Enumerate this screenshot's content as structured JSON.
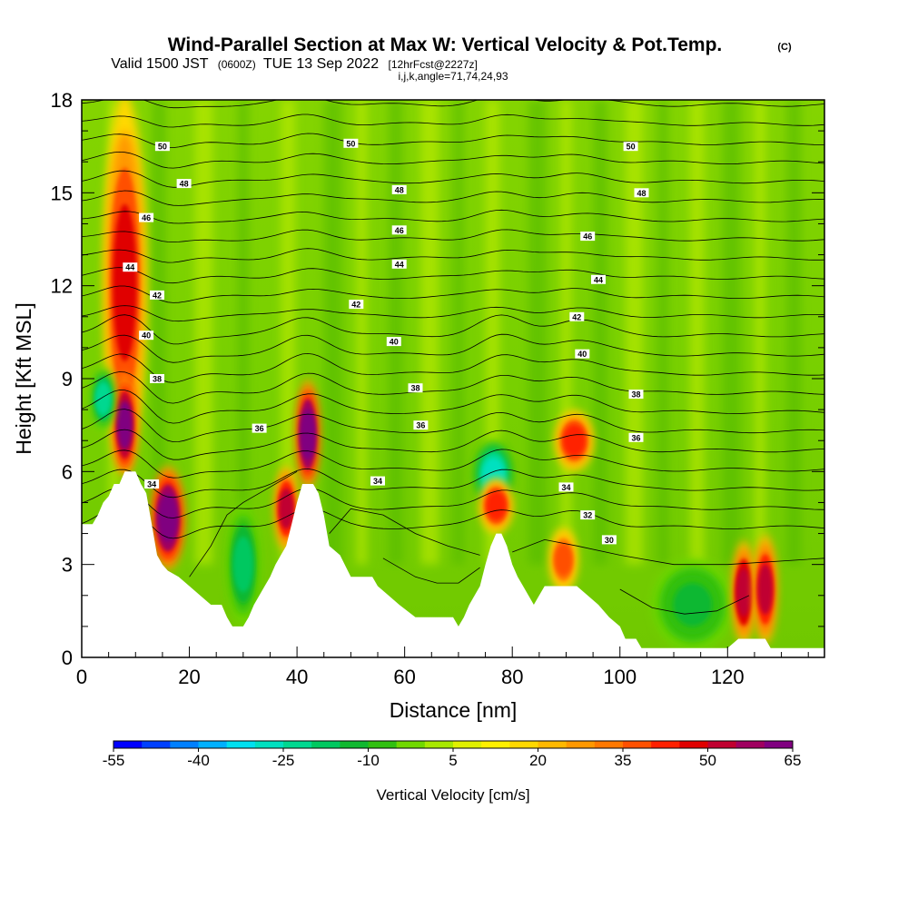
{
  "chart_data": {
    "type": "heatmap",
    "title": {
      "main": "Wind-Parallel Section at Max W: Vertical Velocity & Pot.Temp.",
      "copyright": "(C)",
      "line2_a": "Valid 1500 JST",
      "line2_b": "(0600Z)",
      "line2_c": "TUE 13 Sep 2022",
      "line2_d": "[12hrFcst@2227z]",
      "line3": "i,j,k,angle=71,74,24,93"
    },
    "xlabel": "Distance [nm]",
    "ylabel": "Height [Kft MSL]",
    "xlim": [
      0,
      138
    ],
    "ylim": [
      0,
      18
    ],
    "x_ticks": [
      0,
      20,
      40,
      60,
      80,
      100,
      120
    ],
    "y_ticks": [
      0,
      3,
      6,
      9,
      12,
      15,
      18
    ],
    "colorbar": {
      "label": "Vertical Velocity [cm/s]",
      "tick_labels": [
        "-55",
        "-40",
        "-25",
        "-10",
        "5",
        "20",
        "35",
        "50",
        "65"
      ],
      "colors": [
        "#0000ff",
        "#0040ff",
        "#0080ff",
        "#00b0ff",
        "#00e0f0",
        "#00e0c0",
        "#00d890",
        "#00c860",
        "#10b830",
        "#30c010",
        "#70d800",
        "#a8e800",
        "#e0f000",
        "#fff000",
        "#ffd800",
        "#ffb800",
        "#ff9800",
        "#ff7800",
        "#ff5000",
        "#ff2000",
        "#e00000",
        "#c00030",
        "#a00060",
        "#800080"
      ]
    },
    "theta_contour_labels": {
      "50": [
        [
          15,
          16.5
        ],
        [
          50,
          16.6
        ],
        [
          102,
          16.5
        ]
      ],
      "48": [
        [
          19,
          15.3
        ],
        [
          59,
          15.1
        ],
        [
          104,
          15.0
        ]
      ],
      "46": [
        [
          12,
          14.2
        ],
        [
          59,
          13.8
        ],
        [
          94,
          13.6
        ]
      ],
      "44": [
        [
          9,
          12.6
        ],
        [
          59,
          12.7
        ],
        [
          96,
          12.2
        ]
      ],
      "42": [
        [
          14,
          11.7
        ],
        [
          51,
          11.4
        ],
        [
          92,
          11.0
        ]
      ],
      "40": [
        [
          12,
          10.4
        ],
        [
          58,
          10.2
        ],
        [
          93,
          9.8
        ]
      ],
      "38": [
        [
          14,
          9.0
        ],
        [
          62,
          8.7
        ],
        [
          103,
          8.5
        ]
      ],
      "36": [
        [
          33,
          7.4
        ],
        [
          63,
          7.5
        ],
        [
          103,
          7.1
        ]
      ],
      "34": [
        [
          13,
          5.6
        ],
        [
          55,
          5.7
        ],
        [
          90,
          5.5
        ]
      ],
      "32": [
        [
          94,
          4.6
        ]
      ],
      "30": [
        [
          98,
          3.8
        ]
      ]
    },
    "terrain": [
      [
        0,
        4.3
      ],
      [
        2,
        4.3
      ],
      [
        3,
        4.6
      ],
      [
        4,
        5.0
      ],
      [
        5,
        5.2
      ],
      [
        6,
        5.6
      ],
      [
        7,
        5.6
      ],
      [
        8,
        6.0
      ],
      [
        10,
        6.0
      ],
      [
        11,
        5.6
      ],
      [
        12,
        5.3
      ],
      [
        13,
        4.3
      ],
      [
        14,
        3.3
      ],
      [
        15,
        3.0
      ],
      [
        16,
        2.8
      ],
      [
        18,
        2.6
      ],
      [
        20,
        2.3
      ],
      [
        22,
        2.0
      ],
      [
        24,
        1.7
      ],
      [
        26,
        1.7
      ],
      [
        27,
        1.3
      ],
      [
        28,
        1.0
      ],
      [
        30,
        1.0
      ],
      [
        31,
        1.3
      ],
      [
        32,
        1.7
      ],
      [
        33,
        2.0
      ],
      [
        34,
        2.3
      ],
      [
        35,
        2.6
      ],
      [
        36,
        3.0
      ],
      [
        37,
        3.3
      ],
      [
        38,
        3.6
      ],
      [
        39,
        4.3
      ],
      [
        40,
        5.0
      ],
      [
        41,
        5.6
      ],
      [
        42,
        5.6
      ],
      [
        43,
        5.6
      ],
      [
        44,
        5.3
      ],
      [
        45,
        4.6
      ],
      [
        46,
        3.6
      ],
      [
        48,
        3.3
      ],
      [
        50,
        2.6
      ],
      [
        54,
        2.6
      ],
      [
        55,
        2.3
      ],
      [
        57,
        2.0
      ],
      [
        59,
        1.7
      ],
      [
        62,
        1.3
      ],
      [
        65,
        1.3
      ],
      [
        69,
        1.3
      ],
      [
        70,
        1.0
      ],
      [
        71,
        1.3
      ],
      [
        72,
        1.7
      ],
      [
        73,
        2.0
      ],
      [
        74,
        2.3
      ],
      [
        75,
        3.0
      ],
      [
        76,
        3.6
      ],
      [
        77,
        4.0
      ],
      [
        78,
        4.0
      ],
      [
        79,
        3.6
      ],
      [
        80,
        3.0
      ],
      [
        81,
        2.6
      ],
      [
        82,
        2.3
      ],
      [
        83,
        2.0
      ],
      [
        84,
        1.7
      ],
      [
        85,
        2.0
      ],
      [
        86,
        2.3
      ],
      [
        89,
        2.3
      ],
      [
        92,
        2.3
      ],
      [
        94,
        2.0
      ],
      [
        96,
        1.7
      ],
      [
        98,
        1.3
      ],
      [
        100,
        1.0
      ],
      [
        101,
        0.6
      ],
      [
        103,
        0.6
      ],
      [
        104,
        0.3
      ],
      [
        120,
        0.3
      ],
      [
        122,
        0.6
      ],
      [
        127,
        0.6
      ],
      [
        128,
        0.3
      ],
      [
        138,
        0.3
      ]
    ],
    "vertical_velocity_features": [
      {
        "x": [
          5,
          11
        ],
        "y": [
          6.2,
          18.0
        ],
        "w": 40
      },
      {
        "x": [
          7,
          9
        ],
        "y": [
          6.0,
          9.0
        ],
        "w": 58
      },
      {
        "x": [
          3,
          5
        ],
        "y": [
          7.5,
          9.2
        ],
        "w": -30
      },
      {
        "x": [
          14,
          18
        ],
        "y": [
          3.0,
          6.0
        ],
        "w": 60
      },
      {
        "x": [
          41,
          43
        ],
        "y": [
          5.6,
          8.8
        ],
        "w": 60
      },
      {
        "x": [
          37,
          39
        ],
        "y": [
          3.6,
          6.0
        ],
        "w": 45
      },
      {
        "x": [
          28,
          32
        ],
        "y": [
          1.2,
          4.8
        ],
        "w": -22
      },
      {
        "x": [
          74,
          79
        ],
        "y": [
          5.0,
          6.8
        ],
        "w": -35
      },
      {
        "x": [
          75,
          79
        ],
        "y": [
          4.2,
          5.6
        ],
        "w": 38
      },
      {
        "x": [
          89,
          94
        ],
        "y": [
          6.2,
          7.8
        ],
        "w": 35
      },
      {
        "x": [
          88,
          91
        ],
        "y": [
          2.3,
          4.0
        ],
        "w": 30
      },
      {
        "x": [
          107,
          120
        ],
        "y": [
          0.4,
          3.0
        ],
        "w": -18
      },
      {
        "x": [
          122,
          124
        ],
        "y": [
          0.6,
          3.6
        ],
        "w": 48
      },
      {
        "x": [
          126,
          128
        ],
        "y": [
          0.6,
          3.8
        ],
        "w": 45
      }
    ]
  }
}
